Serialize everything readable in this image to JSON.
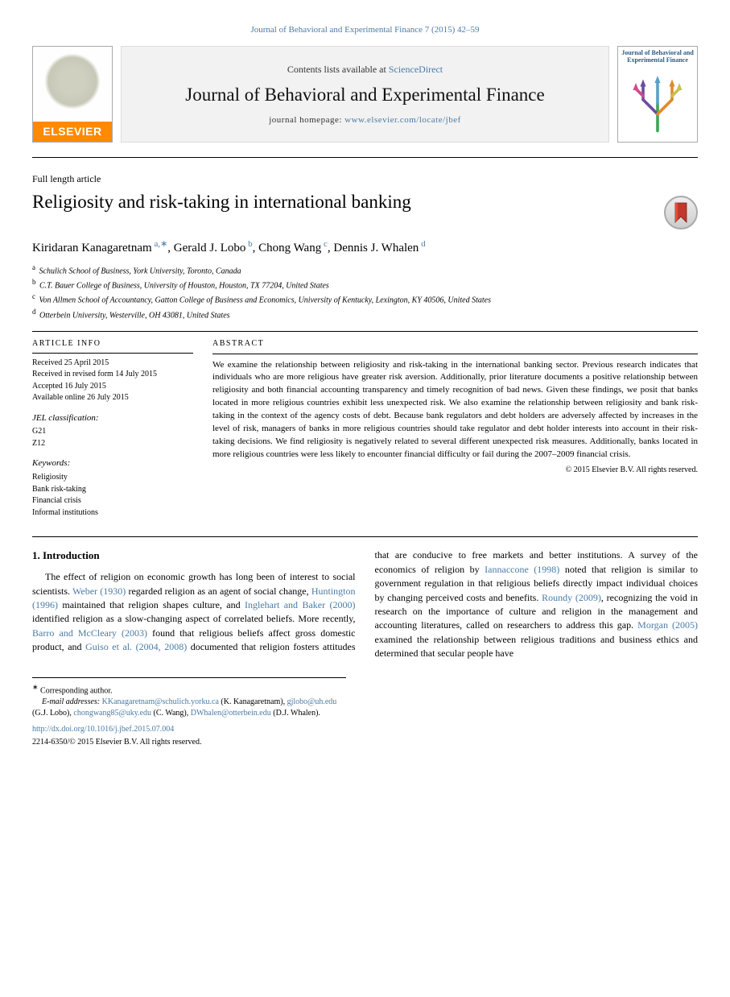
{
  "header": {
    "journal_ref": "Journal of Behavioral and Experimental Finance 7 (2015) 42–59"
  },
  "banner": {
    "publisher": "ELSEVIER",
    "contents_prefix": "Contents lists available at ",
    "contents_link": "ScienceDirect",
    "journal_name": "Journal of Behavioral and Experimental Finance",
    "homepage_prefix": "journal homepage: ",
    "homepage_url": "www.elsevier.com/locate/jbef",
    "cover_title": "Journal of Behavioral and Experimental Finance"
  },
  "article": {
    "section": "Full length article",
    "title": "Religiosity and risk-taking in international banking",
    "authors": [
      {
        "name": "Kiridaran Kanagaretnam",
        "aff": "a",
        "corr": true
      },
      {
        "name": "Gerald J. Lobo",
        "aff": "b",
        "corr": false
      },
      {
        "name": "Chong Wang",
        "aff": "c",
        "corr": false
      },
      {
        "name": "Dennis J. Whalen",
        "aff": "d",
        "corr": false
      }
    ],
    "affiliations": [
      {
        "label": "a",
        "text": "Schulich School of Business, York University, Toronto, Canada"
      },
      {
        "label": "b",
        "text": "C.T. Bauer College of Business, University of Houston, Houston, TX 77204, United States"
      },
      {
        "label": "c",
        "text": "Von Allmen School of Accountancy, Gatton College of Business and Economics, University of Kentucky, Lexington, KY 40506, United States"
      },
      {
        "label": "d",
        "text": "Otterbein University, Westerville, OH 43081, United States"
      }
    ]
  },
  "meta": {
    "info_head": "ARTICLE INFO",
    "history": [
      "Received 25 April 2015",
      "Received in revised form 14 July 2015",
      "Accepted 16 July 2015",
      "Available online 26 July 2015"
    ],
    "jel_head": "JEL classification:",
    "jel": [
      "G21",
      "Z12"
    ],
    "kw_head": "Keywords:",
    "keywords": [
      "Religiosity",
      "Bank risk-taking",
      "Financial crisis",
      "Informal institutions"
    ]
  },
  "abstract": {
    "head": "ABSTRACT",
    "text": "We examine the relationship between religiosity and risk-taking in the international banking sector. Previous research indicates that individuals who are more religious have greater risk aversion. Additionally, prior literature documents a positive relationship between religiosity and both financial accounting transparency and timely recognition of bad news. Given these findings, we posit that banks located in more religious countries exhibit less unexpected risk. We also examine the relationship between religiosity and bank risk-taking in the context of the agency costs of debt. Because bank regulators and debt holders are adversely affected by increases in the level of risk, managers of banks in more religious countries should take regulator and debt holder interests into account in their risk-taking decisions. We find religiosity is negatively related to several different unexpected risk measures. Additionally, banks located in more religious countries were less likely to encounter financial difficulty or fail during the 2007–2009 financial crisis.",
    "copyright": "© 2015 Elsevier B.V. All rights reserved."
  },
  "intro": {
    "head": "1. Introduction",
    "html_col1": "The effect of religion on economic growth has long been of interest to social scientists. <span class=\"cite\">Weber (1930)</span> regarded religion as an agent of social change, <span class=\"cite\">Huntington (1996)</span> maintained that religion shapes culture, and <span class=\"cite\">Inglehart and Baker (2000)</span> identified religion as a slow-changing aspect of correlated beliefs. More recently, <span class=\"cite\">Barro and McCleary (2003)</span> found that religious beliefs affect gross domestic product, and <span class=\"cite\">Guiso et al. (2004, 2008)</span> documented that religion",
    "html_col2": "fosters attitudes that are conducive to free markets and better institutions. A survey of the economics of religion by <span class=\"cite\">Iannaccone (1998)</span> noted that religion is similar to government regulation in that religious beliefs directly impact individual choices by changing perceived costs and benefits. <span class=\"cite\">Roundy (2009)</span>, recognizing the void in research on the importance of culture and religion in the management and accounting literatures, called on researchers to address this gap. <span class=\"cite\">Morgan (2005)</span> examined the relationship between religious traditions and business ethics and determined that secular people have"
  },
  "footnotes": {
    "corr_label": "Corresponding author.",
    "email_label": "E-mail addresses:",
    "emails": [
      {
        "addr": "KKanagaretnam@schulich.yorku.ca",
        "who": "(K. Kanagaretnam)"
      },
      {
        "addr": "gjlobo@uh.edu",
        "who": "(G.J. Lobo)"
      },
      {
        "addr": "chongwang85@uky.edu",
        "who": "(C. Wang)"
      },
      {
        "addr": "DWhalen@otterbein.edu",
        "who": "(D.J. Whalen)"
      }
    ],
    "doi": "http://dx.doi.org/10.1016/j.jbef.2015.07.004",
    "copy": "2214-6350/© 2015 Elsevier B.V. All rights reserved."
  },
  "colors": {
    "link": "#4a7ba6",
    "elsevier_orange": "#ff8a00"
  }
}
